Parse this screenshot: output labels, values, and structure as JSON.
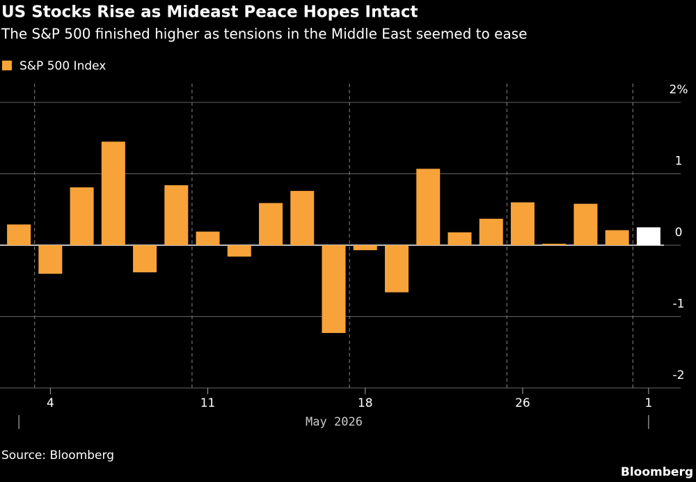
{
  "chart_data": {
    "type": "bar",
    "title": "US Stocks Rise as Mideast Peace Hopes Intact",
    "subtitle": "The S&P 500 finished higher as tensions in the Middle East seemed to ease",
    "legend": "S&P 500 Index",
    "categories": [
      null,
      "4",
      null,
      null,
      null,
      null,
      "11",
      null,
      null,
      null,
      null,
      "18",
      null,
      null,
      null,
      null,
      "26",
      null,
      null,
      null,
      "1"
    ],
    "x_label": "May 2026",
    "values": [
      0.29,
      -0.4,
      0.81,
      1.45,
      -0.38,
      0.84,
      0.19,
      -0.16,
      0.59,
      0.76,
      -1.23,
      -0.07,
      -0.66,
      1.07,
      0.18,
      0.37,
      0.6,
      0.02,
      0.58,
      0.21,
      0.25
    ],
    "color": "#f7a33a",
    "colors": [
      "#f7a33a",
      "#f7a33a",
      "#f7a33a",
      "#f7a33a",
      "#f7a33a",
      "#f7a33a",
      "#f7a33a",
      "#f7a33a",
      "#f7a33a",
      "#f7a33a",
      "#f7a33a",
      "#f7a33a",
      "#f7a33a",
      "#f7a33a",
      "#f7a33a",
      "#f7a33a",
      "#f7a33a",
      "#f7a33a",
      "#f7a33a",
      "#f7a33a",
      "#ffffff"
    ],
    "ylim": [
      -2,
      2
    ],
    "yticks": [
      {
        "value": 2,
        "label": "2%"
      },
      1,
      0,
      -1,
      -2
    ],
    "grid": true,
    "source": "Source: Bloomberg",
    "brand": "Bloomberg"
  }
}
